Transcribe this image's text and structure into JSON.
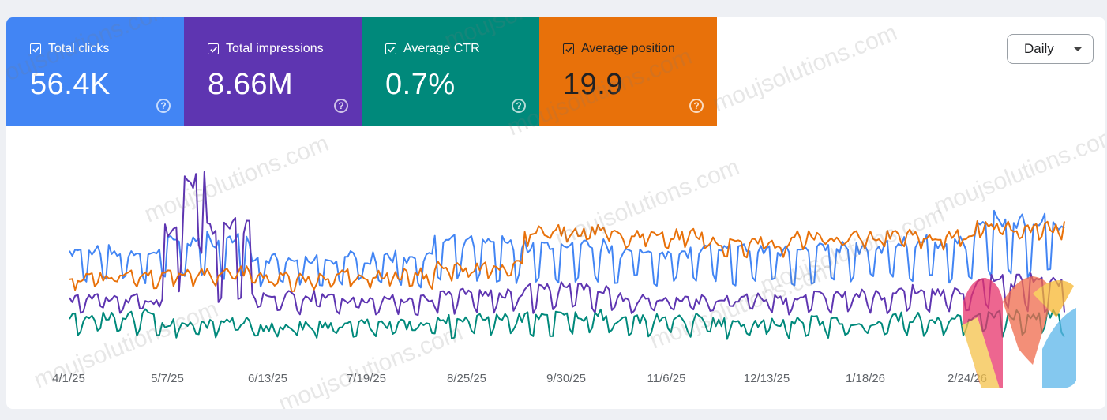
{
  "metrics": {
    "clicks": {
      "label": "Total clicks",
      "value": "56.4K"
    },
    "impressions": {
      "label": "Total impressions",
      "value": "8.66M"
    },
    "ctr": {
      "label": "Average CTR",
      "value": "0.7%"
    },
    "position": {
      "label": "Average position",
      "value": "19.9"
    }
  },
  "range_selector": {
    "selected": "Daily"
  },
  "watermark": {
    "text": "moujsolutions.com"
  },
  "colors": {
    "clicks": "#4285f4",
    "impressions": "#5e35b1",
    "ctr": "#00897b",
    "position": "#e8710a"
  },
  "chart_data": {
    "type": "line",
    "x_ticks": [
      "4/1/25",
      "5/7/25",
      "6/13/25",
      "7/19/25",
      "8/25/25",
      "9/30/25",
      "11/6/25",
      "12/13/25",
      "1/18/26",
      "2/24/26"
    ],
    "x_range": [
      "4/1/25",
      "3/21/26"
    ],
    "grid": false,
    "legend": "metric cards above chart",
    "series": [
      {
        "name": "Total clicks",
        "color": "#4285f4",
        "weekly_low": 0.35,
        "weekly_high": [
          0.55,
          0.62,
          0.5,
          0.52,
          0.6,
          0.58,
          0.55,
          0.56,
          0.57,
          0.6,
          0.72
        ]
      },
      {
        "name": "Total impressions",
        "color": "#5e35b1",
        "weekly_low": 0.22,
        "weekly_high": [
          0.3,
          0.7,
          0.32,
          0.3,
          0.33,
          0.36,
          0.3,
          0.3,
          0.32,
          0.34,
          0.4
        ]
      },
      {
        "name": "Average CTR",
        "color": "#00897b",
        "weekly_low": 0.1,
        "weekly_high": [
          0.22,
          0.18,
          0.16,
          0.17,
          0.2,
          0.22,
          0.2,
          0.18,
          0.19,
          0.21,
          0.22
        ]
      },
      {
        "name": "Average position",
        "color": "#e8710a",
        "weekly_low": 0.4,
        "weekly_high": [
          0.45,
          0.47,
          0.44,
          0.46,
          0.5,
          0.68,
          0.66,
          0.62,
          0.65,
          0.66,
          0.7
        ]
      }
    ]
  }
}
